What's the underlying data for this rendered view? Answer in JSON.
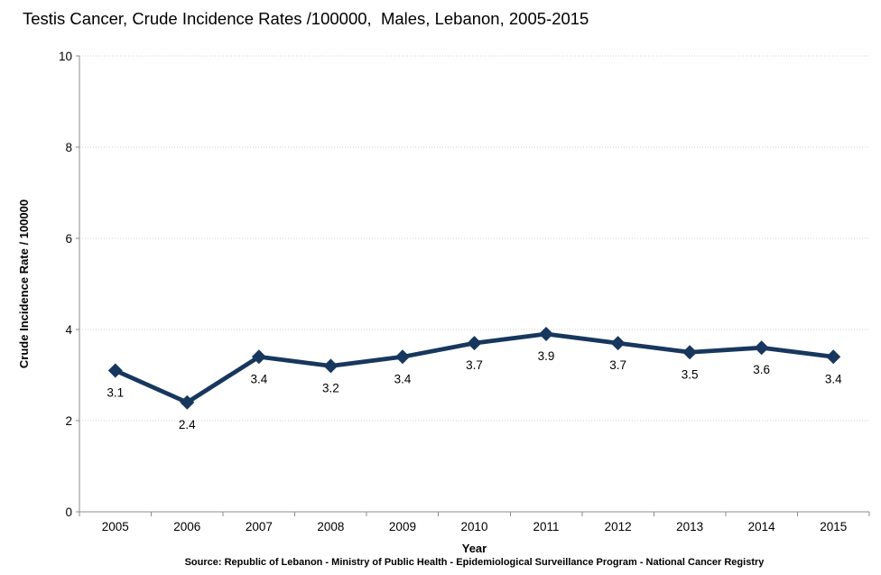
{
  "chart_data": {
    "type": "line",
    "title": "Testis Cancer, Crude Incidence Rates /100000,  Males, Lebanon, 2005-2015",
    "categories": [
      "2005",
      "2006",
      "2007",
      "2008",
      "2009",
      "2010",
      "2011",
      "2012",
      "2013",
      "2014",
      "2015"
    ],
    "values": [
      3.1,
      2.4,
      3.4,
      3.2,
      3.4,
      3.7,
      3.9,
      3.7,
      3.5,
      3.6,
      3.4
    ],
    "data_label_texts": [
      "3.1",
      "2.4",
      "3.4",
      "3.2",
      "3.4",
      "3.7",
      "3.9",
      "3.7",
      "3.5",
      "3.6",
      "3.4"
    ],
    "xlabel": "Year",
    "ylabel": "Crude Incidence Rate / 100000",
    "ylim": [
      0,
      10
    ],
    "yticks": [
      0,
      2,
      4,
      6,
      8,
      10
    ],
    "grid": "horizontal dotted",
    "legend": "none",
    "marker": "diamond",
    "data_labels_position": "below",
    "line_color": "#17375E",
    "marker_color": "#17375E",
    "gridline_color": "#CFCFCF",
    "axis_color": "#8C8C8C",
    "text_color": "#000000",
    "source": "Source: Republic of Lebanon - Ministry of Public Health - Epidemiological Surveillance Program - National Cancer Registry"
  }
}
